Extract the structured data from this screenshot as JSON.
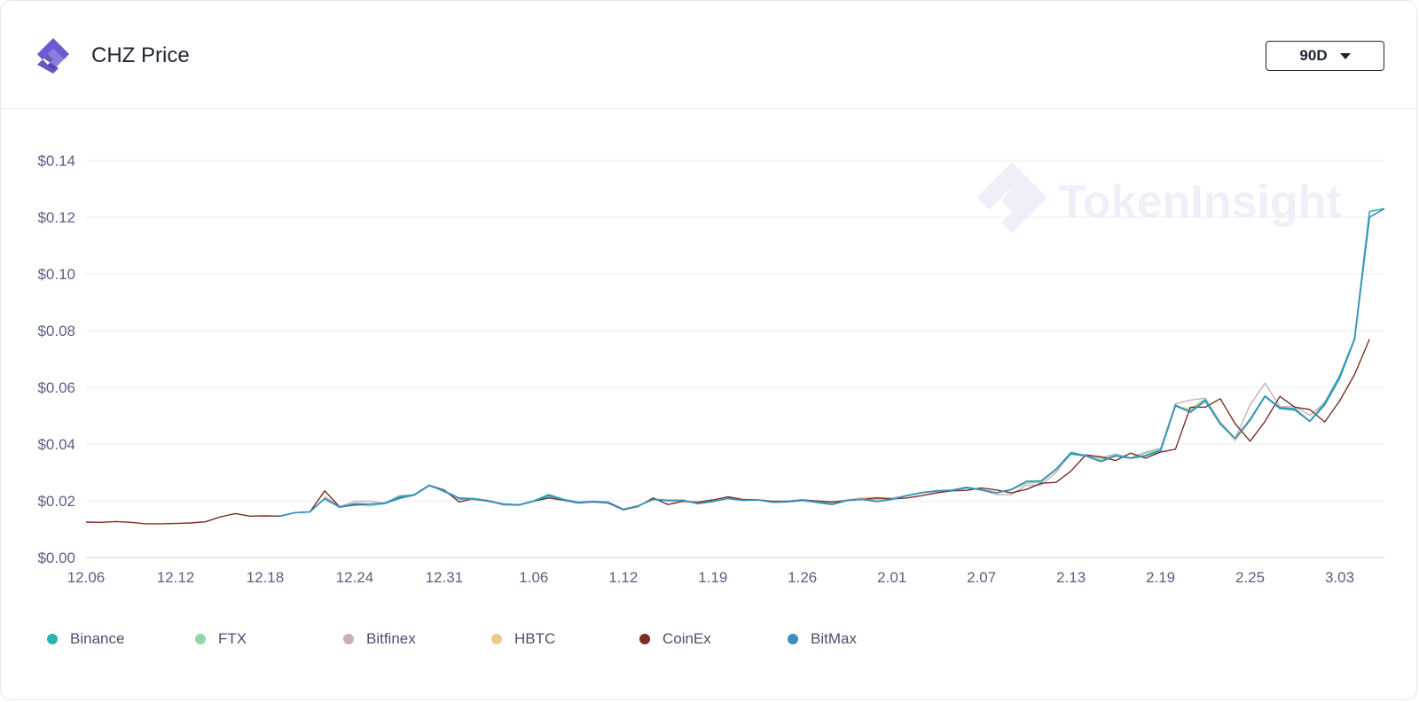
{
  "header": {
    "title": "CHZ Price",
    "period_label": "90D",
    "logo_icon": "tokeninsight-logo-icon"
  },
  "watermark": {
    "text": "TokenInsight"
  },
  "colors": {
    "Binance": "#2ab3b0",
    "FTX": "#8fd6a8",
    "Bitfinex": "#c9b0b6",
    "HBTC": "#ecc98e",
    "CoinEx": "#7a2e24",
    "BitMax": "#3a8fc0"
  },
  "chart_data": {
    "type": "line",
    "title": "CHZ Price",
    "xlabel": "",
    "ylabel": "",
    "ylim": [
      0,
      0.14
    ],
    "yticks": [
      0,
      0.02,
      0.04,
      0.06,
      0.08,
      0.1,
      0.12,
      0.14
    ],
    "ytick_labels": [
      "$0.00",
      "$0.02",
      "$0.04",
      "$0.06",
      "$0.08",
      "$0.10",
      "$0.12",
      "$0.14"
    ],
    "xticks": [
      {
        "label": "12.06",
        "day": 0
      },
      {
        "label": "12.12",
        "day": 6
      },
      {
        "label": "12.18",
        "day": 12
      },
      {
        "label": "12.24",
        "day": 18
      },
      {
        "label": "12.31",
        "day": 24
      },
      {
        "label": "1.06",
        "day": 30
      },
      {
        "label": "1.12",
        "day": 36
      },
      {
        "label": "1.19",
        "day": 42
      },
      {
        "label": "1.26",
        "day": 48
      },
      {
        "label": "2.01",
        "day": 54
      },
      {
        "label": "2.07",
        "day": 60
      },
      {
        "label": "2.13",
        "day": 66
      },
      {
        "label": "2.19",
        "day": 72
      },
      {
        "label": "2.25",
        "day": 78
      },
      {
        "label": "3.03",
        "day": 84
      }
    ],
    "grid": true,
    "legend_position": "bottom-left",
    "series": [
      {
        "name": "CoinEx",
        "x": [
          0,
          1,
          2,
          3,
          4,
          5,
          6,
          7,
          8,
          9,
          10,
          11,
          12,
          13,
          14,
          15,
          16,
          17,
          18,
          19,
          20,
          21,
          22,
          23,
          24,
          25,
          26,
          27,
          28,
          29,
          30,
          31,
          32,
          33,
          34,
          35,
          36,
          37,
          38,
          39,
          40,
          41,
          42,
          43,
          44,
          45,
          46,
          47,
          48,
          49,
          50,
          51,
          52,
          53,
          54,
          55,
          56,
          57,
          58,
          59,
          60,
          61,
          62,
          63,
          64,
          65,
          66,
          67,
          68,
          69,
          70,
          71,
          72,
          73,
          74,
          75,
          76,
          77,
          78,
          79,
          80,
          81,
          82,
          83,
          84,
          85,
          86
        ],
        "y": [
          0.0125,
          0.0124,
          0.0127,
          0.0124,
          0.0119,
          0.0119,
          0.012,
          0.0122,
          0.0126,
          0.0143,
          0.0155,
          0.0146,
          0.0147,
          0.0146,
          0.0158,
          0.0161,
          0.0235,
          0.0178,
          0.0185,
          0.0188,
          0.0192,
          0.021,
          0.0222,
          0.0255,
          0.0238,
          0.0196,
          0.0208,
          0.02,
          0.0188,
          0.0186,
          0.0198,
          0.021,
          0.0202,
          0.0192,
          0.0196,
          0.0192,
          0.0168,
          0.018,
          0.021,
          0.0187,
          0.0198,
          0.0195,
          0.0203,
          0.0214,
          0.0205,
          0.0203,
          0.0198,
          0.0198,
          0.0203,
          0.0199,
          0.0196,
          0.0201,
          0.0205,
          0.021,
          0.0206,
          0.021,
          0.0218,
          0.0228,
          0.0235,
          0.0237,
          0.0245,
          0.0238,
          0.0228,
          0.024,
          0.0262,
          0.0265,
          0.0305,
          0.0362,
          0.0355,
          0.0342,
          0.0368,
          0.035,
          0.0372,
          0.0382,
          0.053,
          0.053,
          0.056,
          0.0472,
          0.041,
          0.048,
          0.0568,
          0.053,
          0.0522,
          0.0478,
          0.0552,
          0.0645,
          0.077
        ]
      },
      {
        "name": "Binance",
        "x": [
          13,
          14,
          15,
          16,
          17,
          18,
          19,
          20,
          21,
          22,
          23,
          24,
          25,
          26,
          27,
          28,
          29,
          30,
          31,
          32,
          33,
          34,
          35,
          36,
          37,
          38,
          39,
          40,
          41,
          42,
          43,
          44,
          45,
          46,
          47,
          48,
          49,
          50,
          51,
          52,
          53,
          54,
          55,
          56,
          57,
          58,
          59,
          60,
          61,
          62,
          63,
          64,
          65,
          66,
          67,
          68,
          69,
          70,
          71,
          72,
          73,
          74,
          75,
          76,
          77,
          78,
          79,
          80,
          81,
          82,
          83,
          84,
          85,
          86,
          87
        ],
        "y": [
          0.0146,
          0.0158,
          0.0161,
          0.0208,
          0.0178,
          0.019,
          0.0188,
          0.0192,
          0.0215,
          0.0222,
          0.0255,
          0.0235,
          0.021,
          0.0208,
          0.0198,
          0.0188,
          0.0186,
          0.02,
          0.0222,
          0.0205,
          0.0195,
          0.0198,
          0.0195,
          0.017,
          0.0182,
          0.0205,
          0.0202,
          0.0202,
          0.019,
          0.0198,
          0.0208,
          0.0202,
          0.0203,
          0.0195,
          0.0197,
          0.0202,
          0.0196,
          0.0188,
          0.0202,
          0.0206,
          0.0198,
          0.0205,
          0.0218,
          0.0228,
          0.0235,
          0.0237,
          0.0248,
          0.0238,
          0.0228,
          0.024,
          0.0268,
          0.027,
          0.0312,
          0.037,
          0.036,
          0.0338,
          0.036,
          0.035,
          0.036,
          0.0378,
          0.0538,
          0.0512,
          0.0555,
          0.0472,
          0.042,
          0.0488,
          0.057,
          0.0528,
          0.0525,
          0.048,
          0.0545,
          0.064,
          0.0772,
          0.122,
          0.123
        ]
      },
      {
        "name": "FTX",
        "x": [
          16,
          17,
          18,
          19,
          20,
          21,
          22,
          23,
          24,
          25,
          26,
          27,
          28,
          29,
          30,
          31,
          32,
          33,
          34,
          35,
          36,
          37,
          38,
          39,
          40,
          41,
          42,
          43,
          44,
          45,
          46,
          47,
          48,
          49,
          50,
          51,
          52,
          53,
          54,
          55,
          56,
          57,
          58,
          59,
          60,
          61,
          62,
          63,
          64,
          65,
          66,
          67,
          68,
          69,
          70,
          71,
          72,
          73,
          74,
          75,
          76,
          77,
          78,
          79,
          80,
          81,
          82,
          83,
          84,
          85,
          86
        ],
        "y": [
          0.0202,
          0.018,
          0.0188,
          0.0182,
          0.019,
          0.0212,
          0.0222,
          0.0255,
          0.0232,
          0.0208,
          0.0205,
          0.0198,
          0.0188,
          0.0184,
          0.0198,
          0.0215,
          0.0205,
          0.0195,
          0.0196,
          0.0193,
          0.0168,
          0.0183,
          0.0205,
          0.0202,
          0.0198,
          0.0192,
          0.02,
          0.021,
          0.0203,
          0.0203,
          0.0197,
          0.0198,
          0.0203,
          0.0197,
          0.019,
          0.0203,
          0.0205,
          0.0205,
          0.0208,
          0.0218,
          0.0228,
          0.0236,
          0.0238,
          0.0248,
          0.024,
          0.0228,
          0.0238,
          0.0262,
          0.0265,
          0.031,
          0.0372,
          0.0358,
          0.0345,
          0.0362,
          0.0352,
          0.0368,
          0.038,
          0.0535,
          0.0518,
          0.0558,
          0.0475,
          0.0418,
          0.0485,
          0.0568,
          0.053,
          0.0522,
          0.0482,
          0.0545,
          0.0638,
          0.077,
          0.12
        ]
      },
      {
        "name": "Bitfinex",
        "x": [
          16,
          17,
          18,
          19,
          20,
          21,
          22,
          23,
          24,
          25,
          26,
          27,
          28,
          29,
          30,
          31,
          32,
          33,
          34,
          35,
          36,
          37,
          38,
          39,
          40,
          41,
          42,
          43,
          44,
          45,
          46,
          47,
          48,
          49,
          50,
          51,
          52,
          53,
          54,
          55,
          56,
          57,
          58,
          59,
          60,
          61,
          62,
          63,
          64,
          65,
          66,
          67,
          68,
          69,
          70,
          71,
          72,
          73,
          74,
          75,
          76,
          77,
          78,
          79,
          80,
          81,
          82,
          83,
          84,
          85,
          86
        ],
        "y": [
          0.0215,
          0.018,
          0.0198,
          0.0198,
          0.0192,
          0.0218,
          0.022,
          0.0252,
          0.0235,
          0.0205,
          0.0208,
          0.0198,
          0.019,
          0.0186,
          0.0198,
          0.021,
          0.0205,
          0.0195,
          0.0198,
          0.0195,
          0.017,
          0.0182,
          0.0208,
          0.0198,
          0.0198,
          0.0193,
          0.0198,
          0.0212,
          0.0203,
          0.0203,
          0.0198,
          0.0198,
          0.0203,
          0.0196,
          0.0192,
          0.0202,
          0.0206,
          0.0206,
          0.021,
          0.0218,
          0.0228,
          0.0235,
          0.0238,
          0.0246,
          0.0238,
          0.0222,
          0.0222,
          0.0255,
          0.0255,
          0.03,
          0.0368,
          0.036,
          0.0352,
          0.0365,
          0.0352,
          0.0372,
          0.0385,
          0.0542,
          0.0555,
          0.0562,
          0.0478,
          0.042,
          0.0538,
          0.0615,
          0.0532,
          0.0532,
          0.0502,
          0.0545,
          0.064,
          0.077,
          0.12
        ]
      },
      {
        "name": "HBTC",
        "x": [
          44,
          45,
          46,
          47,
          48,
          49,
          50,
          51,
          52,
          53,
          54,
          55,
          56,
          57,
          58,
          59,
          60,
          61,
          62,
          63,
          64,
          65,
          66,
          67,
          68,
          69,
          70,
          71,
          72,
          73,
          74,
          75,
          76,
          77,
          78,
          79,
          80,
          81,
          82,
          83,
          84,
          85,
          86
        ],
        "y": [
          0.0205,
          0.0204,
          0.0199,
          0.0199,
          0.0202,
          0.0201,
          0.0196,
          0.0203,
          0.0211,
          0.0212,
          0.021,
          0.0218,
          0.023,
          0.0236,
          0.0238,
          0.0246,
          0.024,
          0.0228,
          0.0238,
          0.0262,
          0.0266,
          0.0308,
          0.0368,
          0.0358,
          0.0342,
          0.0364,
          0.0352,
          0.037,
          0.0382,
          0.0532,
          0.0525,
          0.056,
          0.0474,
          0.0412,
          0.0482,
          0.0568,
          0.053,
          0.0522,
          0.048,
          0.0548,
          0.0642,
          0.077,
          0.12
        ]
      },
      {
        "name": "BitMax",
        "x": [
          13,
          14,
          15,
          16,
          17,
          18,
          19,
          20,
          21,
          22,
          23,
          24,
          25,
          26,
          27,
          28,
          29,
          30,
          31,
          32,
          33,
          34,
          35,
          36,
          37,
          38,
          39,
          40,
          41,
          42,
          43,
          44,
          45,
          46,
          47,
          48,
          49,
          50,
          51,
          52,
          53,
          54,
          55,
          56,
          57,
          58,
          59,
          60,
          61,
          62,
          63,
          64,
          65,
          66,
          67,
          68,
          69,
          70,
          71,
          72,
          73,
          74,
          75,
          76,
          77,
          78,
          79,
          80,
          81,
          82,
          83,
          84,
          85,
          86,
          87
        ],
        "y": [
          0.0146,
          0.0158,
          0.0161,
          0.0208,
          0.0177,
          0.0188,
          0.0188,
          0.019,
          0.0208,
          0.022,
          0.0255,
          0.0233,
          0.0208,
          0.0205,
          0.0198,
          0.0186,
          0.0185,
          0.0198,
          0.0218,
          0.0203,
          0.0193,
          0.0197,
          0.0194,
          0.017,
          0.0182,
          0.0205,
          0.0202,
          0.0202,
          0.019,
          0.0197,
          0.0208,
          0.0202,
          0.0203,
          0.0195,
          0.0196,
          0.0201,
          0.0194,
          0.0187,
          0.0201,
          0.0205,
          0.0197,
          0.0205,
          0.0218,
          0.0229,
          0.0234,
          0.0236,
          0.0246,
          0.0238,
          0.0228,
          0.024,
          0.0268,
          0.027,
          0.0312,
          0.0365,
          0.0358,
          0.0338,
          0.0358,
          0.035,
          0.0358,
          0.0375,
          0.0535,
          0.0512,
          0.0552,
          0.047,
          0.042,
          0.0485,
          0.0568,
          0.0525,
          0.052,
          0.048,
          0.0538,
          0.0632,
          0.0768,
          0.12,
          0.123
        ]
      }
    ]
  },
  "legend": [
    {
      "name": "Binance"
    },
    {
      "name": "FTX"
    },
    {
      "name": "Bitfinex"
    },
    {
      "name": "HBTC"
    },
    {
      "name": "CoinEx"
    },
    {
      "name": "BitMax"
    }
  ]
}
